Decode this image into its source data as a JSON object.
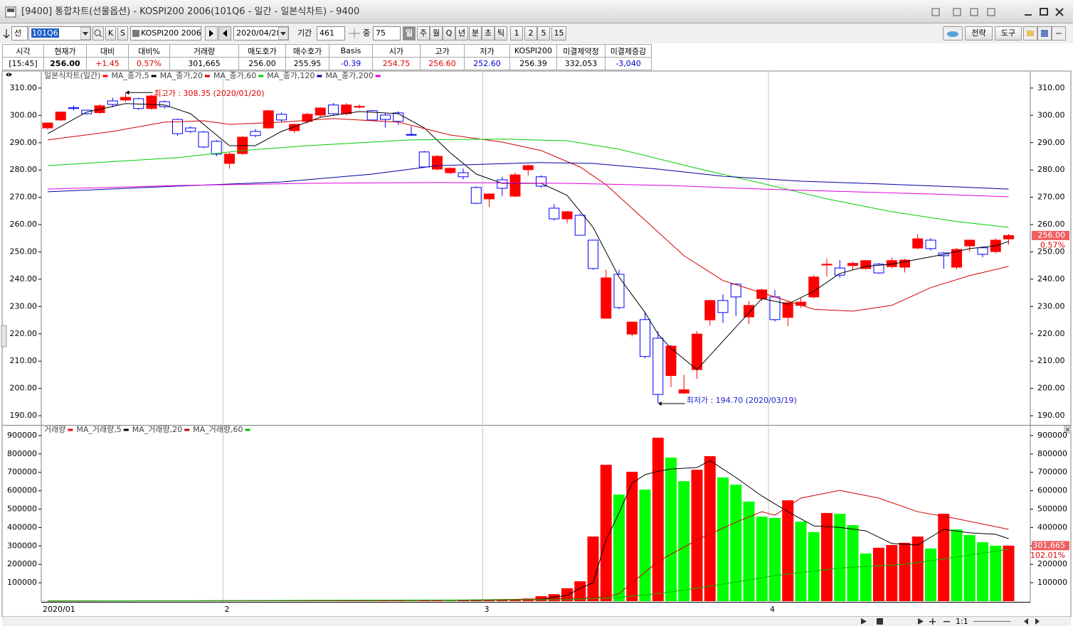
{
  "window": {
    "title": "[9400] 통합차트(선물옵션) - KOSPI200 2006(101Q6 - 일간 - 일본식차트) - 9400"
  },
  "toolbar": {
    "mode": "선",
    "code": "101Q6",
    "k": "K",
    "s": "S",
    "name": "KOSPI200 2006",
    "date": "2020/04/28",
    "period_label": "기간",
    "period": "461",
    "zoom_label": "중",
    "zoom": "75",
    "intervals": [
      "일",
      "주",
      "월",
      "Q",
      "년",
      "분",
      "초",
      "틱",
      "1",
      "2",
      "5",
      "15"
    ],
    "strategy": "전략",
    "tools": "도구"
  },
  "quote": {
    "headers": [
      "시각",
      "현재가",
      "대비",
      "대비%",
      "거래량",
      "매도호가",
      "매수호가",
      "Basis",
      "시가",
      "고가",
      "저가",
      "KOSPI200",
      "미결제약정",
      "미결제증감"
    ],
    "values": [
      "[15:45]",
      "256.00",
      "+1.45",
      "0.57%",
      "301,665",
      "256.00",
      "255.95",
      "-0.39",
      "254.75",
      "256.60",
      "252.60",
      "256.39",
      "332,053",
      "-3,040"
    ]
  },
  "statusbar": {
    "ratio": "1:1"
  },
  "chart_data": [
    {
      "type": "candlestick",
      "name": "일본식차트(일간)",
      "categories": [
        "2020/01",
        null,
        null,
        null,
        null,
        null,
        null,
        null,
        null,
        null,
        null,
        null,
        null,
        null,
        "2",
        null,
        null,
        null,
        null,
        null,
        null,
        null,
        null,
        null,
        null,
        null,
        null,
        null,
        null,
        null,
        null,
        null,
        null,
        null,
        "3",
        null,
        null,
        null,
        null,
        null,
        null,
        null,
        null,
        null,
        null,
        null,
        null,
        null,
        null,
        null,
        null,
        null,
        null,
        null,
        null,
        null,
        "4",
        null,
        null,
        null,
        null,
        null,
        null,
        null,
        null,
        null,
        null,
        null,
        null,
        null,
        null,
        null,
        null,
        null,
        null
      ],
      "open": [
        295.4,
        298.3,
        302.8,
        301.9,
        301,
        305.3,
        305.6,
        306.1,
        302.5,
        305,
        298.5,
        295.4,
        293.9,
        290.5,
        282.4,
        286,
        294.1,
        295.4,
        300.4,
        294.4,
        297.8,
        300.1,
        303.8,
        300.6,
        303,
        301.7,
        300.1,
        300.9,
        293,
        286.6,
        280.3,
        279,
        279,
        273.6,
        269.4,
        276.4,
        270.4,
        280.1,
        277.5,
        266,
        262.1,
        263.4,
        254.3,
        225.7,
        241.8,
        219.9,
        225.2,
        218.4,
        204.7,
        198.3,
        206.9,
        225.1,
        232.2,
        238.2,
        226.2,
        232.9,
        233.5,
        226,
        230.4,
        233.5,
        245.2,
        244.1,
        245,
        243.9,
        245.5,
        244.6,
        244.4,
        251.4,
        254.3,
        249.6,
        244.4,
        252.2,
        251.5,
        250.1,
        254.75
      ],
      "high": [
        297.5,
        301.3,
        303.6,
        302,
        304,
        306.5,
        308.35,
        306.5,
        307.5,
        305.5,
        298.8,
        296,
        294.3,
        291,
        286.5,
        292.5,
        295,
        302,
        301,
        297,
        301,
        303,
        304.5,
        304.5,
        304,
        302,
        301,
        301.5,
        296,
        287,
        285.5,
        281,
        280.5,
        274,
        271.5,
        277.5,
        279,
        282,
        278,
        267.5,
        265,
        264,
        254.5,
        243.5,
        243.5,
        224.6,
        228,
        221,
        216,
        205,
        221,
        232.5,
        234.5,
        238.5,
        232,
        236.5,
        236,
        232,
        233,
        241.5,
        247.5,
        247,
        246.5,
        247,
        246,
        248,
        247.5,
        256.5,
        255,
        250,
        251.5,
        254.5,
        252,
        255,
        256.6
      ],
      "low": [
        294.8,
        298,
        301.8,
        300.3,
        300.5,
        303,
        305,
        302,
        302,
        302.5,
        292.5,
        293.5,
        288,
        285,
        280.5,
        285.5,
        292,
        295,
        297.5,
        293.5,
        297,
        299.5,
        300,
        300,
        302.5,
        298,
        295.5,
        296.5,
        292.5,
        281,
        280,
        278.5,
        276.5,
        267.5,
        266.5,
        270.5,
        270,
        278,
        273.5,
        261.5,
        260.5,
        256,
        243.5,
        225.5,
        229,
        219,
        211,
        194.7,
        200.5,
        198,
        203.5,
        223,
        224,
        226.5,
        223.5,
        232,
        224.5,
        222.8,
        229.5,
        233,
        241,
        240.5,
        243.5,
        243.5,
        242,
        244,
        242.5,
        251,
        250.5,
        243.8,
        243.6,
        250,
        248,
        249.5,
        252.6
      ],
      "close": [
        297.2,
        301.2,
        302.5,
        300.6,
        303.5,
        304,
        306.6,
        302.5,
        307.1,
        303.2,
        293.3,
        294.1,
        288.4,
        285.8,
        285.8,
        292,
        292.6,
        301.7,
        298.3,
        296.7,
        300.4,
        302.7,
        300.6,
        303.8,
        303.3,
        298.3,
        298.5,
        297.8,
        292.8,
        281.1,
        285,
        280.6,
        277.5,
        267.8,
        271.2,
        273.3,
        278.2,
        281.6,
        274.1,
        262.1,
        264.7,
        256.1,
        243.9,
        240.5,
        229.6,
        224.3,
        211.7,
        197.8,
        215.5,
        199.5,
        219.9,
        232.2,
        227.8,
        233.5,
        230.4,
        236.1,
        225.2,
        231.4,
        231.6,
        240.8,
        245.5,
        241.5,
        245.8,
        246.8,
        242.3,
        246.8,
        247,
        254.8,
        251.2,
        248.6,
        250.9,
        254.3,
        249.1,
        254.3,
        256
      ],
      "up_color": "#ff0000",
      "down_color": "#0000ff",
      "down_hollow": true,
      "ylim": [
        186.9,
        315.7
      ],
      "yticks": [
        {
          "value": 190,
          "label": "190.00"
        },
        {
          "value": 200,
          "label": "200.00"
        },
        {
          "value": 210,
          "label": "210.00"
        },
        {
          "value": 220,
          "label": "220.00"
        },
        {
          "value": 230,
          "label": "230.00"
        },
        {
          "value": 240,
          "label": "240.00"
        },
        {
          "value": 250,
          "label": "250.00"
        },
        {
          "value": 260,
          "label": "260.00"
        },
        {
          "value": 270,
          "label": "270.00"
        },
        {
          "value": 280,
          "label": "280.00"
        },
        {
          "value": 290,
          "label": "290.00"
        },
        {
          "value": 300,
          "label": "300.00"
        },
        {
          "value": 310,
          "label": "310.00"
        }
      ],
      "series": [
        {
          "name": "MA_종가,5",
          "color": "#000000",
          "x": [
            0,
            3,
            6,
            9,
            11,
            13,
            14,
            16,
            18,
            21,
            24,
            27,
            29,
            31,
            33,
            35,
            38,
            40,
            42,
            44,
            46,
            47,
            48,
            50,
            51,
            53,
            55,
            57,
            59,
            61,
            63,
            65,
            67,
            69,
            71,
            73,
            74
          ],
          "values": [
            293.3,
            301.2,
            304.3,
            303.8,
            300.6,
            292.8,
            288.9,
            288.9,
            294.1,
            299.3,
            301.4,
            300.6,
            295.4,
            286.3,
            278.5,
            275.1,
            275.1,
            270.7,
            259,
            240.8,
            227.8,
            219.9,
            214.7,
            206.9,
            212.1,
            222.5,
            232.9,
            230.9,
            235.6,
            242.1,
            244.7,
            245.5,
            247.3,
            249.1,
            251.2,
            252.2,
            253.8
          ]
        },
        {
          "name": "MA_종가,20",
          "color": "#d40000",
          "x": [
            0,
            5,
            9,
            12,
            14,
            18,
            22,
            27,
            31,
            35,
            38,
            41,
            43,
            46,
            49,
            52,
            56,
            59,
            62,
            65,
            68,
            71,
            74
          ],
          "values": [
            291,
            294.1,
            297.5,
            298,
            296.7,
            297.5,
            298.8,
            297.5,
            292.8,
            290.2,
            287.1,
            281.1,
            274.6,
            261.6,
            248.6,
            239.5,
            233.5,
            229,
            228.3,
            230.4,
            236.9,
            241.3,
            244.7
          ]
        },
        {
          "name": "MA_종가,60",
          "color": "#00d000",
          "x": [
            0,
            10,
            15,
            20,
            28,
            35,
            40,
            44,
            50,
            55,
            60,
            65,
            70,
            74
          ],
          "values": [
            281.6,
            284.5,
            287.1,
            288.9,
            291,
            291.3,
            290.7,
            287.6,
            280.6,
            275.1,
            269.4,
            264.7,
            261.1,
            259
          ]
        },
        {
          "name": "MA_종가,120",
          "color": "#0000a0",
          "x": [
            0,
            10,
            18,
            25,
            30,
            38,
            42,
            47,
            52,
            58,
            64,
            70,
            74
          ],
          "values": [
            272,
            274.1,
            275.6,
            278.5,
            281.6,
            282.7,
            282.4,
            280.3,
            277.7,
            275.9,
            274.9,
            273.8,
            273
          ]
        },
        {
          "name": "MA_종가,200",
          "color": "#e000e0",
          "x": [
            0,
            10,
            20,
            30,
            40,
            48,
            55,
            62,
            68,
            74
          ],
          "values": [
            273,
            274.3,
            275.1,
            275.4,
            275.1,
            274.3,
            273,
            272,
            271.2,
            270.2
          ]
        }
      ],
      "annotations": [
        {
          "text": "최고가 : 308.35 (2020/01/20)",
          "color": "#e00000"
        },
        {
          "text": "최저가 : 194.70 (2020/03/19)",
          "color": "#2020d0"
        }
      ],
      "last_label": "256.00",
      "change_label": "0.57%"
    },
    {
      "type": "bar",
      "name": "거래량",
      "values": [
        800,
        1200,
        900,
        1500,
        1100,
        1300,
        1800,
        1600,
        2100,
        1700,
        1400,
        1900,
        2200,
        1800,
        1500,
        1700,
        1300,
        1600,
        1900,
        2400,
        2100,
        2600,
        2300,
        2800,
        3100,
        2700,
        3500,
        4200,
        3800,
        4500,
        5200,
        4800,
        5600,
        6300,
        7100,
        8200,
        9000,
        14000,
        27000,
        38000,
        70000,
        108000,
        351000,
        741000,
        579000,
        703000,
        606000,
        888000,
        780000,
        652000,
        714000,
        788000,
        672000,
        633000,
        541000,
        459000,
        452000,
        548000,
        432000,
        375000,
        479000,
        475000,
        413000,
        259000,
        290000,
        305000,
        317000,
        351000,
        286000,
        475000,
        390000,
        359000,
        320000,
        301000,
        301665
      ],
      "up_color": "#ff0000",
      "down_color": "#00ff00",
      "ylim": [
        0,
        950000
      ],
      "yticks": [
        100000,
        200000,
        300000,
        400000,
        500000,
        600000,
        700000,
        800000,
        900000
      ],
      "series": [
        {
          "name": "MA_거래량,5",
          "color": "#000000",
          "x": [
            0,
            20,
            33,
            36,
            38,
            40,
            41,
            42,
            43,
            44,
            45,
            46,
            47,
            48,
            50,
            51,
            53,
            55,
            57,
            59,
            61,
            63,
            65,
            67,
            69,
            71,
            73,
            74
          ],
          "values": [
            1200,
            2000,
            5000,
            8000,
            12000,
            31000,
            70000,
            100000,
            332000,
            479000,
            641000,
            687000,
            706000,
            718000,
            726000,
            764000,
            672000,
            571000,
            486000,
            409000,
            401000,
            382000,
            313000,
            305000,
            390000,
            371000,
            363000,
            340000
          ]
        },
        {
          "name": "MA_거래량,20",
          "color": "#d00000",
          "x": [
            0,
            30,
            40,
            43,
            44,
            47,
            50,
            53,
            55,
            56,
            58,
            61,
            64,
            67,
            70,
            74
          ],
          "values": [
            1000,
            3500,
            14000,
            23000,
            40000,
            216000,
            332000,
            429000,
            486000,
            467000,
            560000,
            602000,
            560000,
            486000,
            448000,
            390000
          ]
        },
        {
          "name": "MA_거래량,60",
          "color": "#00c000",
          "x": [
            0,
            40,
            44,
            47,
            50,
            54,
            56,
            58,
            61,
            66,
            70,
            74
          ],
          "values": [
            700,
            8000,
            20000,
            40000,
            70000,
            115000,
            139000,
            155000,
            180000,
            200000,
            240000,
            282000
          ]
        }
      ],
      "last_label": "301,665",
      "change_label": "102.01%"
    }
  ]
}
